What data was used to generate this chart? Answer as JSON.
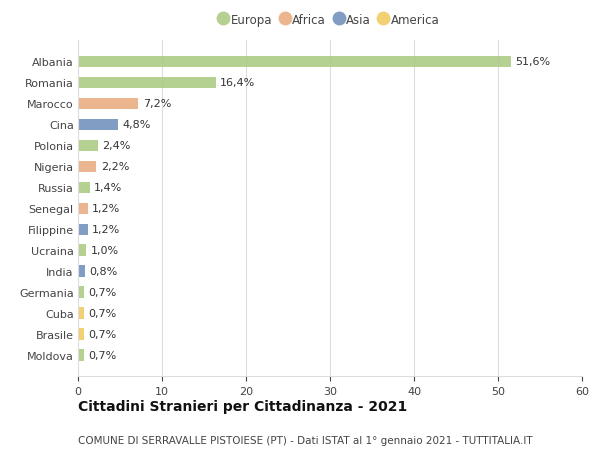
{
  "countries": [
    "Albania",
    "Romania",
    "Marocco",
    "Cina",
    "Polonia",
    "Nigeria",
    "Russia",
    "Senegal",
    "Filippine",
    "Ucraina",
    "India",
    "Germania",
    "Cuba",
    "Brasile",
    "Moldova"
  ],
  "values": [
    51.6,
    16.4,
    7.2,
    4.8,
    2.4,
    2.2,
    1.4,
    1.2,
    1.2,
    1.0,
    0.8,
    0.7,
    0.7,
    0.7,
    0.7
  ],
  "labels": [
    "51,6%",
    "16,4%",
    "7,2%",
    "4,8%",
    "2,4%",
    "2,2%",
    "1,4%",
    "1,2%",
    "1,2%",
    "1,0%",
    "0,8%",
    "0,7%",
    "0,7%",
    "0,7%",
    "0,7%"
  ],
  "continents": [
    "Europa",
    "Europa",
    "Africa",
    "Asia",
    "Europa",
    "Africa",
    "Europa",
    "Africa",
    "Asia",
    "Europa",
    "Asia",
    "Europa",
    "America",
    "America",
    "Europa"
  ],
  "continent_colors": {
    "Europa": "#a8c97f",
    "Africa": "#e8a87c",
    "Asia": "#6b8cba",
    "America": "#f0c95a"
  },
  "legend_order": [
    "Europa",
    "Africa",
    "Asia",
    "America"
  ],
  "title": "Cittadini Stranieri per Cittadinanza - 2021",
  "subtitle": "COMUNE DI SERRAVALLE PISTOIESE (PT) - Dati ISTAT al 1° gennaio 2021 - TUTTITALIA.IT",
  "xlim": [
    0,
    60
  ],
  "xticks": [
    0,
    10,
    20,
    30,
    40,
    50,
    60
  ],
  "background_color": "#ffffff",
  "grid_color": "#dddddd",
  "bar_height": 0.55,
  "label_fontsize": 8,
  "title_fontsize": 10,
  "subtitle_fontsize": 7.5,
  "axis_label_fontsize": 8,
  "legend_fontsize": 8.5
}
